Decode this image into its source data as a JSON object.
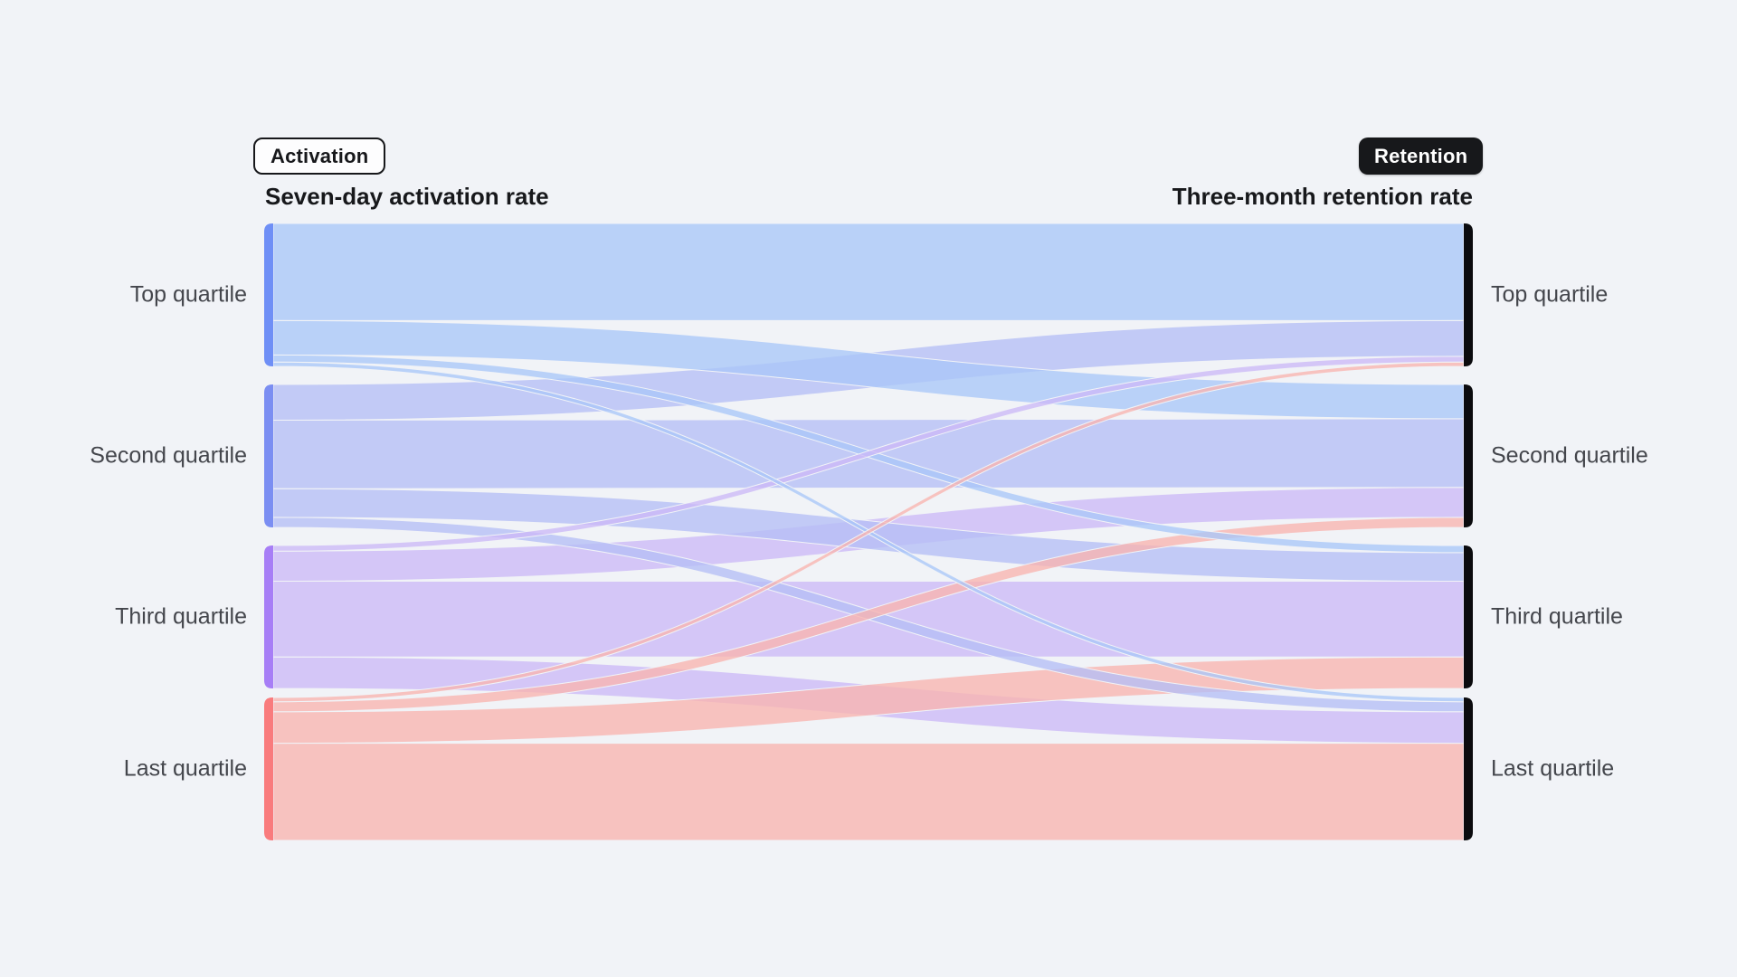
{
  "page": {
    "background_color": "#f1f3f7"
  },
  "legend": {
    "activation": {
      "label": "Activation"
    },
    "retention": {
      "label": "Retention"
    }
  },
  "columns": {
    "left_header": "Seven-day activation rate",
    "right_header": "Three-month retention rate"
  },
  "chart_data": {
    "type": "sankey",
    "orientation": "horizontal",
    "left_axis_label": "Seven-day activation rate",
    "right_axis_label": "Three-month retention rate",
    "unit": "percent of source quartile flowing to each retention quartile (estimated from ribbon widths)",
    "left_nodes": [
      {
        "label": "Top quartile",
        "color": "#6f8ff6",
        "flow_color": "#a9c6f8"
      },
      {
        "label": "Second quartile",
        "color": "#7b8ef2",
        "flow_color": "#b5bef6"
      },
      {
        "label": "Third quartile",
        "color": "#a77ef6",
        "flow_color": "#ccb8f7"
      },
      {
        "label": "Last quartile",
        "color": "#f97b7d",
        "flow_color": "#f8b3af"
      }
    ],
    "right_nodes": [
      {
        "label": "Top quartile"
      },
      {
        "label": "Second quartile"
      },
      {
        "label": "Third quartile"
      },
      {
        "label": "Last quartile"
      }
    ],
    "right_node_color": "#0b0b0e",
    "matrix": [
      [
        68,
        24,
        5,
        3
      ],
      [
        25,
        48,
        20,
        7
      ],
      [
        4,
        21,
        53,
        22
      ],
      [
        3,
        7,
        22,
        68
      ]
    ]
  }
}
